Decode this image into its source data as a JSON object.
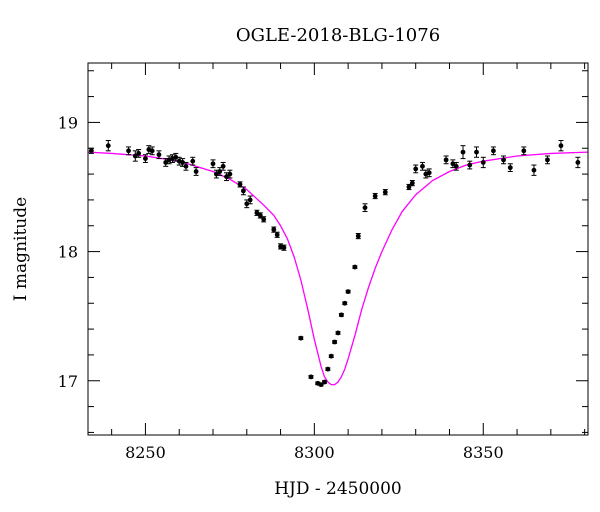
{
  "chart_data": {
    "type": "scatter",
    "title": "OGLE-2018-BLG-1076",
    "xlabel": "HJD - 2450000",
    "ylabel": "I magnitude",
    "xlim": [
      8233,
      8381
    ],
    "ylim": [
      19.46,
      16.58
    ],
    "y_inverted": true,
    "grid": false,
    "x_ticks": [
      8250,
      8300,
      8350
    ],
    "x_tick_labels": [
      "8250",
      "8300",
      "8350"
    ],
    "y_ticks": [
      17,
      18,
      19
    ],
    "y_tick_labels": [
      "17",
      "18",
      "19"
    ],
    "x_minor_step": 10,
    "y_minor_step": 0.2,
    "colors": {
      "data": "#000000",
      "model": "#ff00ff"
    },
    "model_curve": {
      "color": "#ff00ff",
      "x": [
        8233,
        8240,
        8250,
        8260,
        8265,
        8270,
        8275,
        8280,
        8285,
        8288,
        8290,
        8292,
        8294,
        8296,
        8298,
        8300,
        8302,
        8303,
        8304,
        8305,
        8306,
        8307,
        8308,
        8309,
        8310,
        8312,
        8314,
        8316,
        8318,
        8320,
        8323,
        8326,
        8330,
        8335,
        8340,
        8345,
        8350,
        8360,
        8370,
        8381
      ],
      "y": [
        18.77,
        18.76,
        18.74,
        18.7,
        18.66,
        18.62,
        18.56,
        18.48,
        18.36,
        18.28,
        18.2,
        18.1,
        17.96,
        17.78,
        17.56,
        17.32,
        17.11,
        17.03,
        16.99,
        16.97,
        16.97,
        16.99,
        17.03,
        17.09,
        17.17,
        17.35,
        17.55,
        17.72,
        17.87,
        18.0,
        18.17,
        18.31,
        18.44,
        18.55,
        18.62,
        18.67,
        18.7,
        18.74,
        18.76,
        18.77
      ]
    },
    "series": [
      {
        "style": "points-with-errorbars",
        "x": [
          8234,
          8239,
          8245,
          8247,
          8248,
          8250,
          8251,
          8252,
          8254,
          8256,
          8257,
          8258,
          8259,
          8260,
          8261,
          8262,
          8264,
          8265,
          8270,
          8271,
          8272,
          8273,
          8274,
          8275,
          8278,
          8279,
          8280,
          8281,
          8283,
          8284,
          8285,
          8288,
          8289,
          8290,
          8291,
          8296,
          8299,
          8301,
          8302,
          8303,
          8304,
          8305,
          8306,
          8307,
          8308,
          8309,
          8310,
          8312,
          8313,
          8315,
          8318,
          8321,
          8328,
          8329,
          8330,
          8332,
          8333,
          8334,
          8339,
          8341,
          8342,
          8344,
          8346,
          8348,
          8350,
          8353,
          8356,
          8358,
          8362,
          8365,
          8369,
          8373,
          8378
        ],
        "y": [
          18.78,
          18.82,
          18.78,
          18.74,
          18.76,
          18.72,
          18.79,
          18.78,
          18.75,
          18.69,
          18.71,
          18.72,
          18.73,
          18.7,
          18.69,
          18.66,
          18.7,
          18.62,
          18.68,
          18.6,
          18.62,
          18.66,
          18.58,
          18.6,
          18.52,
          18.47,
          18.37,
          18.4,
          18.3,
          18.28,
          18.25,
          18.17,
          18.13,
          18.04,
          18.03,
          17.33,
          17.03,
          16.98,
          16.97,
          16.99,
          17.09,
          17.19,
          17.3,
          17.37,
          17.51,
          17.6,
          17.69,
          17.88,
          18.12,
          18.34,
          18.43,
          18.46,
          18.5,
          18.53,
          18.64,
          18.66,
          18.6,
          18.61,
          18.71,
          18.68,
          18.66,
          18.77,
          18.67,
          18.77,
          18.69,
          18.78,
          18.71,
          18.65,
          18.78,
          18.63,
          18.71,
          18.82,
          18.69
        ],
        "err": [
          0.02,
          0.04,
          0.03,
          0.04,
          0.03,
          0.03,
          0.03,
          0.03,
          0.03,
          0.03,
          0.03,
          0.03,
          0.03,
          0.03,
          0.03,
          0.03,
          0.03,
          0.03,
          0.03,
          0.03,
          0.03,
          0.03,
          0.03,
          0.03,
          0.02,
          0.03,
          0.03,
          0.03,
          0.02,
          0.02,
          0.02,
          0.02,
          0.02,
          0.02,
          0.02,
          0.01,
          0.01,
          0.01,
          0.01,
          0.01,
          0.01,
          0.01,
          0.01,
          0.01,
          0.01,
          0.01,
          0.01,
          0.01,
          0.02,
          0.03,
          0.02,
          0.02,
          0.02,
          0.02,
          0.03,
          0.03,
          0.03,
          0.03,
          0.03,
          0.03,
          0.03,
          0.05,
          0.03,
          0.04,
          0.04,
          0.03,
          0.03,
          0.03,
          0.03,
          0.04,
          0.03,
          0.04,
          0.04
        ]
      }
    ]
  }
}
